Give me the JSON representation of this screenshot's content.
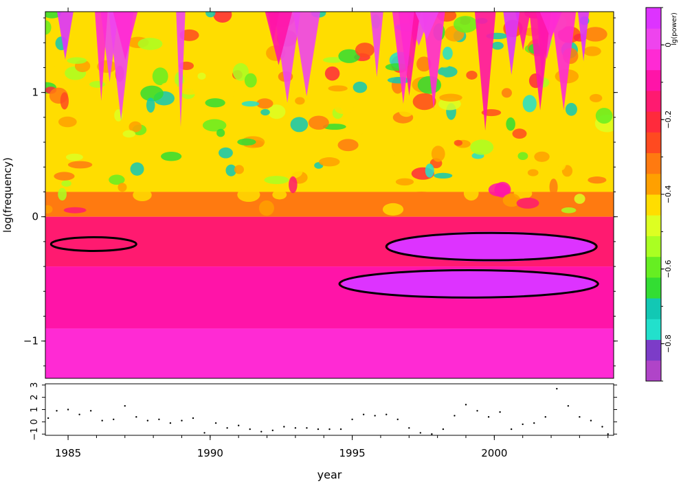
{
  "chart_data": [
    {
      "type": "heatmap",
      "title": "",
      "xlabel": "year",
      "ylabel": "log(frequency)",
      "xlim": [
        1984.2,
        2004.2
      ],
      "ylim": [
        -1.3,
        1.65
      ],
      "x_ticks": [
        1985,
        1990,
        1995,
        2000
      ],
      "x_tick_labels": [
        "1985",
        "1990",
        "1995",
        "2000"
      ],
      "y_ticks": [
        -1,
        0,
        1
      ],
      "y_tick_labels": [
        "−1",
        "0",
        "1"
      ],
      "colorbar": {
        "label": "lg(power)",
        "range": [
          -0.9,
          0.1
        ],
        "ticks": [
          0,
          -0.2,
          -0.4,
          -0.6,
          -0.8
        ],
        "tick_labels": [
          "0",
          "−0.2",
          "−0.4",
          "−0.6",
          "−0.8"
        ],
        "colors": [
          "#b044c8",
          "#7c3cc8",
          "#22e0cc",
          "#12c8b4",
          "#33dd33",
          "#66ee22",
          "#aaff22",
          "#ddff22",
          "#ffdd00",
          "#ffa000",
          "#ff7a10",
          "#ff4a20",
          "#ff2a3c",
          "#ff1a70",
          "#ff14a8",
          "#ff2ad4",
          "#ee44ee",
          "#dd33ff"
        ]
      },
      "contours": [
        {
          "x_center": 1985.9,
          "y_center": -0.22,
          "x_halfwidth": 1.5,
          "y_halfwidth": 0.055
        },
        {
          "x_center": 1999.9,
          "y_center": -0.24,
          "x_halfwidth": 3.7,
          "y_halfwidth": 0.11
        },
        {
          "x_center": 1999.1,
          "y_center": -0.54,
          "x_halfwidth": 4.55,
          "y_halfwidth": 0.11
        }
      ],
      "power_bands": [
        {
          "y_from": 0.2,
          "y_to": 1.65,
          "level": -0.45
        },
        {
          "y_from": 0.0,
          "y_to": 0.2,
          "level": -0.3
        },
        {
          "y_from": -0.4,
          "y_to": 0.0,
          "level": -0.17
        },
        {
          "y_from": -0.9,
          "y_to": -0.4,
          "level": -0.1
        },
        {
          "y_from": -1.3,
          "y_to": -0.9,
          "level": -0.02
        }
      ]
    },
    {
      "type": "scatter",
      "xlabel": "year",
      "ylabel": "",
      "xlim": [
        1984.2,
        2004.2
      ],
      "ylim": [
        -1.1,
        3.1
      ],
      "y_ticks": [
        -1,
        0,
        1,
        2,
        3
      ],
      "y_tick_labels": [
        "−1",
        "0",
        "1",
        "2",
        "3"
      ],
      "x": [
        1984.3,
        1984.6,
        1985.0,
        1985.4,
        1985.8,
        1986.2,
        1986.6,
        1987.0,
        1987.4,
        1987.8,
        1988.2,
        1988.6,
        1989.0,
        1989.4,
        1989.8,
        1990.2,
        1990.6,
        1991.0,
        1991.4,
        1991.8,
        1992.2,
        1992.6,
        1993.0,
        1993.4,
        1993.8,
        1994.2,
        1994.6,
        1995.0,
        1995.4,
        1995.8,
        1996.2,
        1996.6,
        1997.0,
        1997.4,
        1997.8,
        1998.2,
        1998.6,
        1999.0,
        1999.4,
        1999.8,
        2000.2,
        2000.6,
        2001.0,
        2001.4,
        2001.8,
        2002.2,
        2002.6,
        2003.0,
        2003.4,
        2003.8,
        2004.0
      ],
      "y": [
        0.3,
        0.9,
        1.0,
        0.6,
        0.9,
        0.1,
        0.2,
        1.3,
        0.4,
        0.1,
        0.2,
        -0.1,
        0.1,
        0.3,
        -0.9,
        -0.1,
        -0.5,
        -0.3,
        -0.6,
        -0.8,
        -0.7,
        -0.4,
        -0.5,
        -0.5,
        -0.6,
        -0.6,
        -0.6,
        0.2,
        0.6,
        0.5,
        0.6,
        0.2,
        -0.5,
        -0.9,
        -1.0,
        -0.6,
        0.5,
        1.4,
        0.9,
        0.4,
        0.8,
        -0.6,
        -0.2,
        -0.1,
        0.4,
        2.7,
        1.3,
        0.4,
        0.1,
        -0.4,
        -1.0
      ]
    }
  ]
}
